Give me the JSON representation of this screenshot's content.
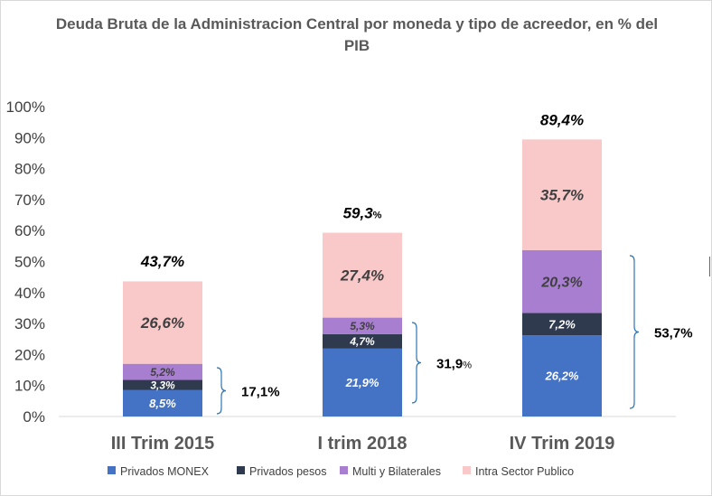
{
  "chart_data": {
    "type": "bar",
    "stacked": true,
    "title": "Deuda Bruta de la Administracion Central por moneda y tipo de acreedor, en % del PIB",
    "categories": [
      "III Trim 2015",
      "I trim 2018",
      "IV Trim 2019"
    ],
    "series": [
      {
        "name": "Privados MONEX",
        "color": "#4472c4",
        "values": [
          8.5,
          21.9,
          26.2
        ],
        "labels": [
          "8,5%",
          "21,9%",
          "26,2%"
        ]
      },
      {
        "name": "Privados pesos",
        "color": "#2f3a4f",
        "values": [
          3.3,
          4.7,
          7.2
        ],
        "labels": [
          "3,3%",
          "4,7%",
          "7,2%"
        ]
      },
      {
        "name": "Multi y Bilaterales",
        "color": "#a87ed0",
        "values": [
          5.2,
          5.3,
          20.3
        ],
        "labels": [
          "5,2%",
          "5,3%",
          "20,3%"
        ]
      },
      {
        "name": "Intra Sector Publico",
        "color": "#f9c8c8",
        "values": [
          26.6,
          27.4,
          35.7
        ],
        "labels": [
          "26,6%",
          "27,4%",
          "35,7%"
        ]
      }
    ],
    "totals": [
      {
        "value": 43.7,
        "main": "43,7%",
        "suffix": ""
      },
      {
        "value": 59.3,
        "main": "59,3",
        "suffix": "%"
      },
      {
        "value": 89.4,
        "main": "89,4%",
        "suffix": ""
      }
    ],
    "bracket_annotations": [
      {
        "value": 17.1,
        "main": "17,1%",
        "suffix": ""
      },
      {
        "value": 31.9,
        "main": "31,9",
        "suffix": "%"
      },
      {
        "value": 53.7,
        "main": "53,7%",
        "suffix": ""
      }
    ],
    "yticks": [
      "0%",
      "10%",
      "20%",
      "30%",
      "40%",
      "50%",
      "60%",
      "70%",
      "80%",
      "90%",
      "100%"
    ],
    "ylim": [
      0,
      100
    ],
    "grid": false,
    "legend_position": "bottom",
    "bracket_color": "#2e75b6"
  }
}
